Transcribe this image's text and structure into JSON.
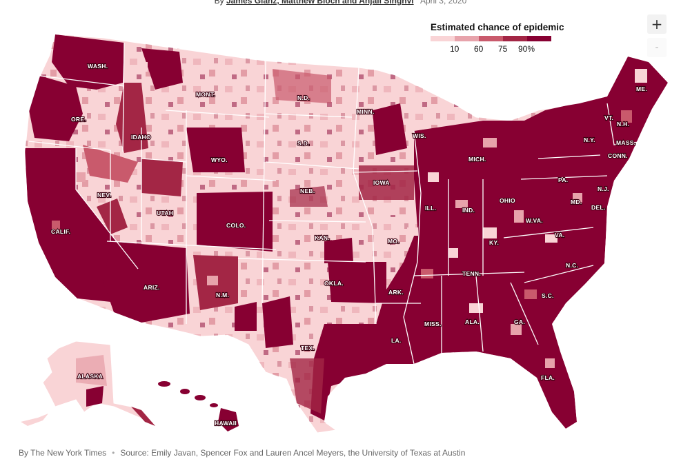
{
  "byline": {
    "prefix": "By",
    "authors": "James Glanz, Matthew Bloch and Anjali Singhvi",
    "date": "April 3, 2020"
  },
  "legend": {
    "title": "Estimated chance of epidemic",
    "ticks": [
      "10",
      "60",
      "75",
      "90%"
    ],
    "colors": [
      "#f9d4d6",
      "#e7a3ab",
      "#c95a6c",
      "#a32645",
      "#870032"
    ]
  },
  "controls": {
    "zoom_in": "+",
    "zoom_out": "-"
  },
  "map": {
    "background_color": "#f9d4d6",
    "border_color": "#ffffff",
    "state_labels": [
      "WASH.",
      "ORE.",
      "CALIF.",
      "IDAHO",
      "NEV.",
      "MONT.",
      "WYO.",
      "UTAH",
      "ARIZ.",
      "COLO.",
      "N.M.",
      "N.D.",
      "S.D.",
      "NEB.",
      "KAN.",
      "OKLA.",
      "TEX.",
      "MINN.",
      "IOWA",
      "MO.",
      "ARK.",
      "LA.",
      "WIS.",
      "ILL.",
      "MICH.",
      "IND.",
      "OHIO",
      "KY.",
      "TENN.",
      "MISS.",
      "ALA.",
      "GA.",
      "FLA.",
      "S.C.",
      "N.C.",
      "VA.",
      "W.VA.",
      "PA.",
      "N.Y.",
      "VT.",
      "N.H.",
      "ME.",
      "MASS.",
      "CONN.",
      "N.J.",
      "MD.",
      "DEL.",
      "ALASKA",
      "HAWAII"
    ]
  },
  "footer": {
    "credit": "By The New York Times",
    "source": "Source: Emily Javan, Spencer Fox and Lauren Ancel Meyers, the University of Texas at Austin"
  }
}
